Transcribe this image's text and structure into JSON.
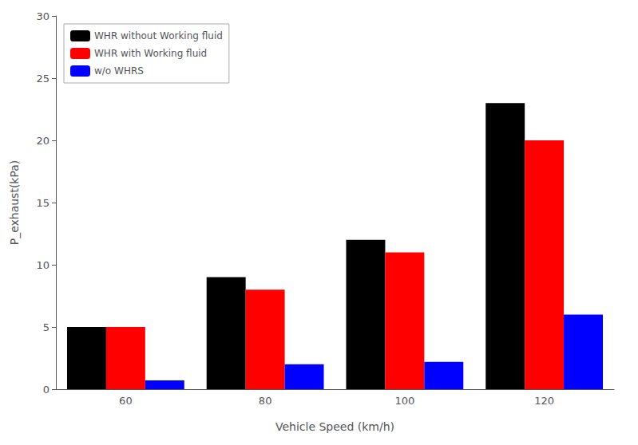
{
  "chart_data": {
    "type": "bar",
    "xlabel": "Vehicle Speed (km/h)",
    "ylabel": "P_exhaust(kPa)",
    "categories": [
      "60",
      "80",
      "100",
      "120"
    ],
    "series": [
      {
        "name": "WHR without Working fluid",
        "color": "#000000",
        "values": [
          5.0,
          9.0,
          12.0,
          23.0
        ]
      },
      {
        "name": "WHR with Working fluid",
        "color": "#ff0000",
        "values": [
          5.0,
          8.0,
          11.0,
          20.0
        ]
      },
      {
        "name": "w/o WHRS",
        "color": "#0000ff",
        "values": [
          0.7,
          2.0,
          2.2,
          6.0
        ]
      }
    ],
    "ylim": [
      0,
      30
    ],
    "yticks": [
      0,
      5,
      10,
      15,
      20,
      25,
      30
    ],
    "grid": false,
    "legend": "upper left"
  }
}
